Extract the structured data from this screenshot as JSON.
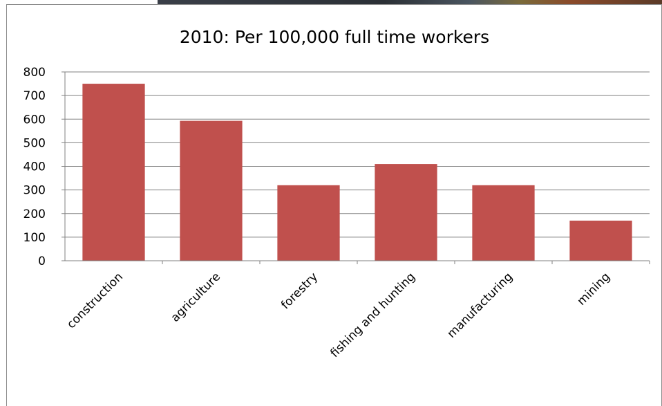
{
  "chart_data": {
    "type": "bar",
    "title": "2010: Per 100,000 full time workers",
    "categories": [
      "construction",
      "agriculture",
      "forestry",
      "fishing and hunting",
      "manufacturing",
      "mining"
    ],
    "values": [
      750,
      593,
      320,
      410,
      320,
      170
    ],
    "ylim": [
      0,
      800
    ],
    "yticks": [
      "0",
      "100",
      "200",
      "300",
      "400",
      "500",
      "600",
      "700",
      "800"
    ],
    "grid": true,
    "legend": "none",
    "xlabel": "",
    "ylabel": "",
    "colors": {
      "bar": "#c0504d",
      "grid": "#808080",
      "axis": "#808080"
    }
  }
}
